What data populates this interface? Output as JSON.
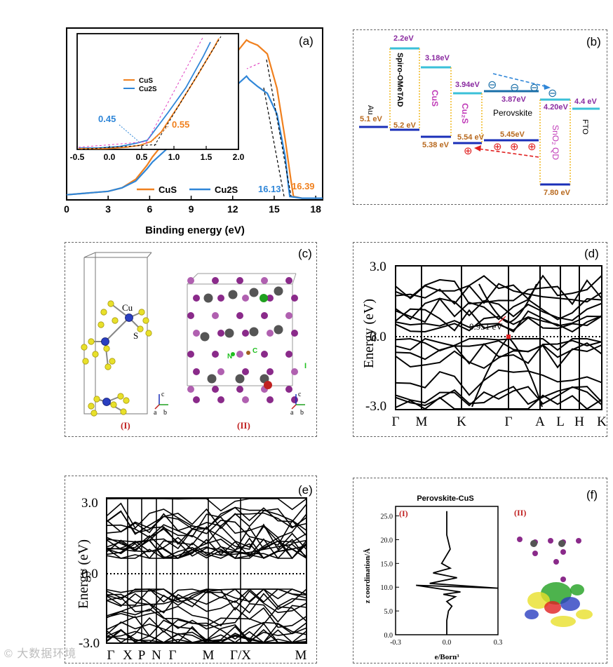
{
  "panel_a": {
    "label": "(a)",
    "xlabel": "Binding energy (eV)",
    "xticks": [
      "0",
      "3",
      "6",
      "9",
      "12",
      "15",
      "18"
    ],
    "legend": [
      "CuS",
      "Cu2S"
    ],
    "inset_legend": [
      "CuS",
      "Cu2S"
    ],
    "inset_xticks": [
      "-0.5",
      "0.0",
      "0.5",
      "1.0",
      "1.5",
      "2.0"
    ],
    "inset_value_cu2s": "0.45",
    "inset_value_cus": "0.55",
    "cutoff_cu2s": "16.13",
    "cutoff_cus": "16.39",
    "colors": {
      "cus": "#f0801e",
      "cu2s": "#2f86d8"
    }
  },
  "panel_b": {
    "label": "(b)",
    "layers": [
      {
        "name": "Au",
        "top": "",
        "bottom": "5.1 eV"
      },
      {
        "name": "Spiro-OMeTAD",
        "top": "2.2eV",
        "bottom": "5.2 eV"
      },
      {
        "name": "CuS",
        "top": "3.18eV",
        "bottom": "5.38 eV"
      },
      {
        "name": "Cu2S",
        "top": "3.94eV",
        "bottom": "5.54 eV"
      },
      {
        "name": "Perovskite",
        "top": "3.87eV",
        "bottom": "5.45eV"
      },
      {
        "name": "SnO2 QD",
        "top": "4.20eV",
        "bottom": "7.80 eV"
      },
      {
        "name": "FTO",
        "top": "4.4 eV",
        "bottom": ""
      }
    ],
    "electron_symbol": "⊖",
    "hole_symbol": "⊕"
  },
  "panel_c": {
    "label": "(c)",
    "sub_I": "(I)",
    "sub_II": "(II)",
    "atoms_I": [
      "Cu",
      "S"
    ],
    "atoms_II": [
      "N",
      "C",
      "I"
    ],
    "axes": [
      "c",
      "a",
      "b"
    ]
  },
  "panel_d": {
    "label": "(d)",
    "ylabel": "Energy (eV)",
    "yticks": [
      "3.0",
      "0.0",
      "-3.0"
    ],
    "kpoints": [
      "Γ",
      "M",
      "K",
      "Γ",
      "A",
      "L",
      "H",
      "K"
    ],
    "gap_label": "0.951 eV"
  },
  "panel_e": {
    "label": "(e)",
    "ylabel": "Energy (eV)",
    "yticks": [
      "3.0",
      "0.0",
      "-3.0"
    ],
    "kpoints": [
      "Γ",
      "X",
      "P",
      "N",
      "Γ",
      "M",
      "Γ/X",
      "M"
    ]
  },
  "panel_f": {
    "label": "(f)",
    "title": "Perovskite-CuS",
    "sub_I": "(I)",
    "sub_II": "(II)",
    "ylabel": "z coordination/Å",
    "xlabel": "e/Born³",
    "yticks": [
      "0.0",
      "5.0",
      "10.0",
      "15.0",
      "20.0",
      "25.0"
    ],
    "xticks": [
      "-0.3",
      "0.0",
      "0.3"
    ]
  },
  "watermark": "© 大数据环境",
  "chart_data": [
    {
      "type": "line",
      "title": "(a)",
      "xlabel": "Binding energy (eV)",
      "ylabel": "",
      "xlim": [
        0,
        18.5
      ],
      "ylim": [
        0,
        1
      ],
      "series": [
        {
          "name": "CuS",
          "x": [
            0,
            3,
            4,
            5,
            5.8,
            6.2,
            13,
            13.2,
            13.8,
            14.5,
            15.2,
            15.8,
            16.2,
            16.39,
            17,
            18.5
          ],
          "y": [
            0.03,
            0.05,
            0.07,
            0.12,
            0.2,
            0.25,
            0.93,
            0.92,
            0.9,
            0.85,
            0.65,
            0.35,
            0.12,
            0.02,
            0.01,
            0.01
          ]
        },
        {
          "name": "Cu2S",
          "x": [
            0,
            3,
            4,
            5,
            5.8,
            6.2,
            13,
            13.2,
            13.8,
            14.5,
            15.2,
            15.8,
            16,
            16.13,
            17,
            18.5
          ],
          "y": [
            0.03,
            0.05,
            0.07,
            0.11,
            0.18,
            0.22,
            0.72,
            0.7,
            0.66,
            0.62,
            0.5,
            0.25,
            0.1,
            0.02,
            0.01,
            0.01
          ]
        }
      ],
      "annotations": [
        "16.13",
        "16.39",
        "0.45",
        "0.55"
      ]
    },
    {
      "type": "line",
      "title": "(d)",
      "xlabel": "",
      "ylabel": "Energy (eV)",
      "ylim": [
        -3.0,
        3.0
      ],
      "categories": [
        "Γ",
        "M",
        "K",
        "Γ",
        "A",
        "L",
        "H",
        "K"
      ],
      "annotations": [
        "0.951 eV"
      ]
    },
    {
      "type": "line",
      "title": "(e)",
      "ylabel": "Energy (eV)",
      "ylim": [
        -3.0,
        3.0
      ],
      "categories": [
        "Γ",
        "X",
        "P",
        "N",
        "Γ",
        "M",
        "Γ/X",
        "M"
      ]
    },
    {
      "type": "line",
      "title": "Perovskite-CuS",
      "xlabel": "e/Born³",
      "ylabel": "z coordination/Å",
      "xlim": [
        -0.3,
        0.3
      ],
      "ylim": [
        0,
        27
      ],
      "series": [
        {
          "name": "charge density difference",
          "x": [
            0,
            0,
            0.01,
            0.03,
            0.0,
            0.05,
            -0.02,
            0.08,
            -0.18,
            0.3,
            -0.1,
            0.06,
            -0.08,
            0.02,
            -0.03,
            0.02,
            0,
            0,
            0
          ],
          "y": [
            0,
            3,
            5,
            6,
            7,
            8,
            8.5,
            9,
            10.4,
            9.8,
            10.8,
            12,
            13,
            14,
            15,
            18,
            21,
            24,
            26
          ]
        }
      ]
    }
  ]
}
